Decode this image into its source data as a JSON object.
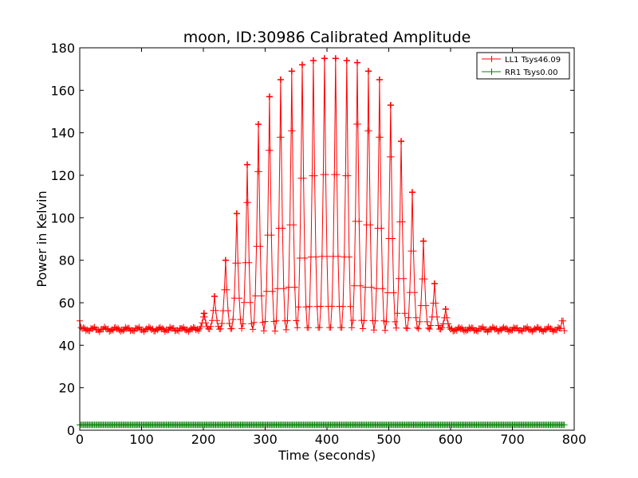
{
  "chart_data": {
    "type": "line",
    "title": "moon, ID:30986 Calibrated Amplitude",
    "xlabel": "Time (seconds)",
    "ylabel": "Power in Kelvin",
    "xlim": [
      0,
      800
    ],
    "ylim": [
      0,
      180
    ],
    "x_ticks": [
      0,
      100,
      200,
      300,
      400,
      500,
      600,
      700,
      800
    ],
    "y_ticks": [
      0,
      20,
      40,
      60,
      80,
      100,
      120,
      140,
      160,
      180
    ],
    "grid": false,
    "legend_position": "top-right",
    "marker": "+",
    "sample_interval_s": 2,
    "series": [
      {
        "name": "LL1 Tsys46.09",
        "color": "#ff0000",
        "baseline": 47.5,
        "x_range": [
          0,
          785
        ],
        "scan_period_s": 17.8,
        "peaks": [
          {
            "t": 201,
            "v": 55
          },
          {
            "t": 218,
            "v": 63
          },
          {
            "t": 236,
            "v": 80
          },
          {
            "t": 254,
            "v": 102
          },
          {
            "t": 271,
            "v": 125
          },
          {
            "t": 289,
            "v": 144
          },
          {
            "t": 307,
            "v": 157
          },
          {
            "t": 325,
            "v": 165
          },
          {
            "t": 343,
            "v": 169
          },
          {
            "t": 360,
            "v": 172
          },
          {
            "t": 378,
            "v": 174
          },
          {
            "t": 396,
            "v": 175
          },
          {
            "t": 414,
            "v": 175
          },
          {
            "t": 432,
            "v": 174
          },
          {
            "t": 449,
            "v": 173
          },
          {
            "t": 467,
            "v": 169
          },
          {
            "t": 485,
            "v": 165
          },
          {
            "t": 503,
            "v": 153
          },
          {
            "t": 520,
            "v": 136
          },
          {
            "t": 538,
            "v": 112
          },
          {
            "t": 556,
            "v": 89
          },
          {
            "t": 574,
            "v": 69
          },
          {
            "t": 592,
            "v": 57
          }
        ]
      },
      {
        "name": "RR1 Tsys0.00",
        "color": "#008000",
        "constant": 2.5,
        "x_range": [
          0,
          785
        ]
      }
    ]
  }
}
